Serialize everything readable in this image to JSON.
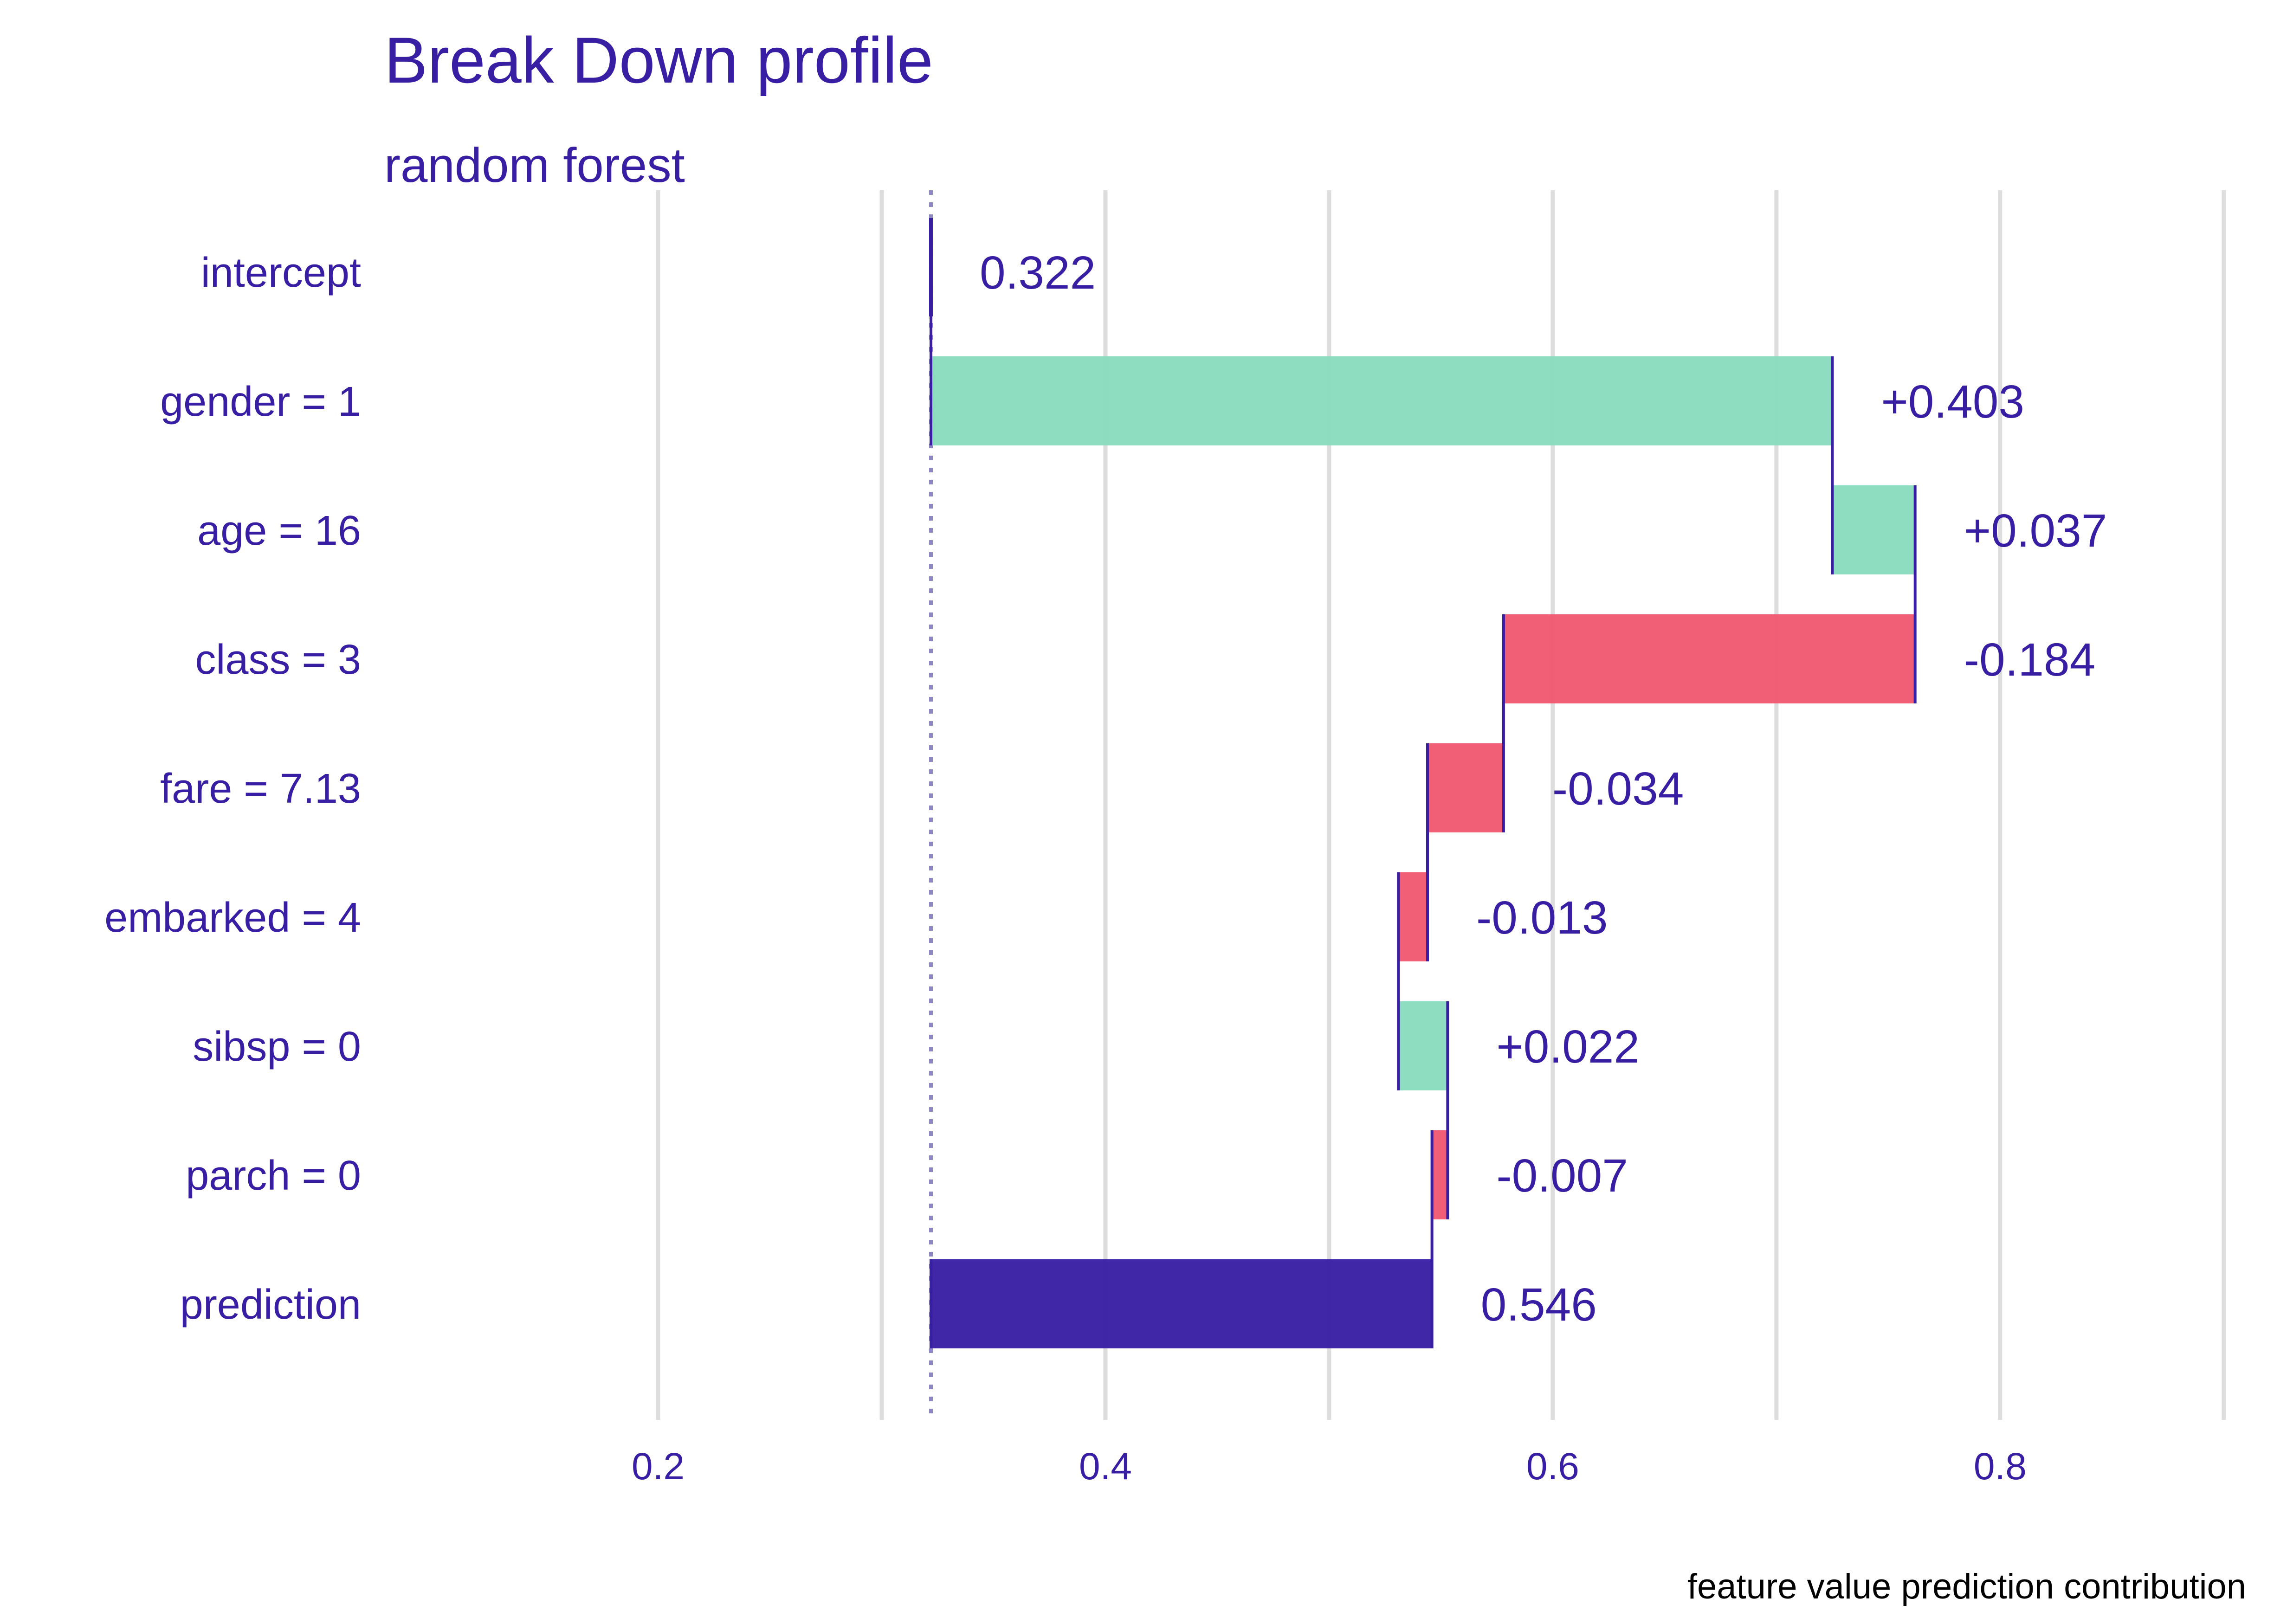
{
  "chart_data": {
    "type": "bar",
    "title": "Break Down profile",
    "subtitle": "random forest",
    "caption": "feature value prediction contribution",
    "categories": [
      "intercept",
      "gender = 1",
      "age = 16",
      "class = 3",
      "fare = 7.13",
      "embarked = 4",
      "sibsp = 0",
      "parch = 0",
      "prediction"
    ],
    "contributions": [
      0.322,
      0.403,
      0.037,
      -0.184,
      -0.034,
      -0.013,
      0.022,
      -0.007,
      0.546
    ],
    "labels": [
      "0.322",
      "+0.403",
      "+0.037",
      "-0.184",
      "-0.034",
      "-0.013",
      "+0.022",
      "-0.007",
      "0.546"
    ],
    "bars": [
      {
        "kind": "intercept",
        "start": 0.322,
        "end": 0.322
      },
      {
        "kind": "positive",
        "start": 0.322,
        "end": 0.725
      },
      {
        "kind": "positive",
        "start": 0.725,
        "end": 0.762
      },
      {
        "kind": "negative",
        "start": 0.762,
        "end": 0.578
      },
      {
        "kind": "negative",
        "start": 0.578,
        "end": 0.544
      },
      {
        "kind": "negative",
        "start": 0.544,
        "end": 0.531
      },
      {
        "kind": "positive",
        "start": 0.531,
        "end": 0.553
      },
      {
        "kind": "negative",
        "start": 0.553,
        "end": 0.546
      },
      {
        "kind": "prediction",
        "start": 0.322,
        "end": 0.546
      }
    ],
    "baseline": 0.322,
    "xlim": [
      0.078,
      0.91
    ],
    "x_ticks": [
      0.2,
      0.4,
      0.6,
      0.8
    ],
    "x_tick_labels": [
      "0.2",
      "0.4",
      "0.6",
      "0.8"
    ],
    "x_gridlines": [
      0.2,
      0.3,
      0.4,
      0.5,
      0.6,
      0.7,
      0.8,
      0.9
    ],
    "grid": true,
    "colors": {
      "text": "#371ea3",
      "positive": "#8bdcbe",
      "negative": "#f05a71",
      "prediction": "#371ea3",
      "grid": "#dddddd",
      "baseline": "#8d87c4"
    }
  }
}
